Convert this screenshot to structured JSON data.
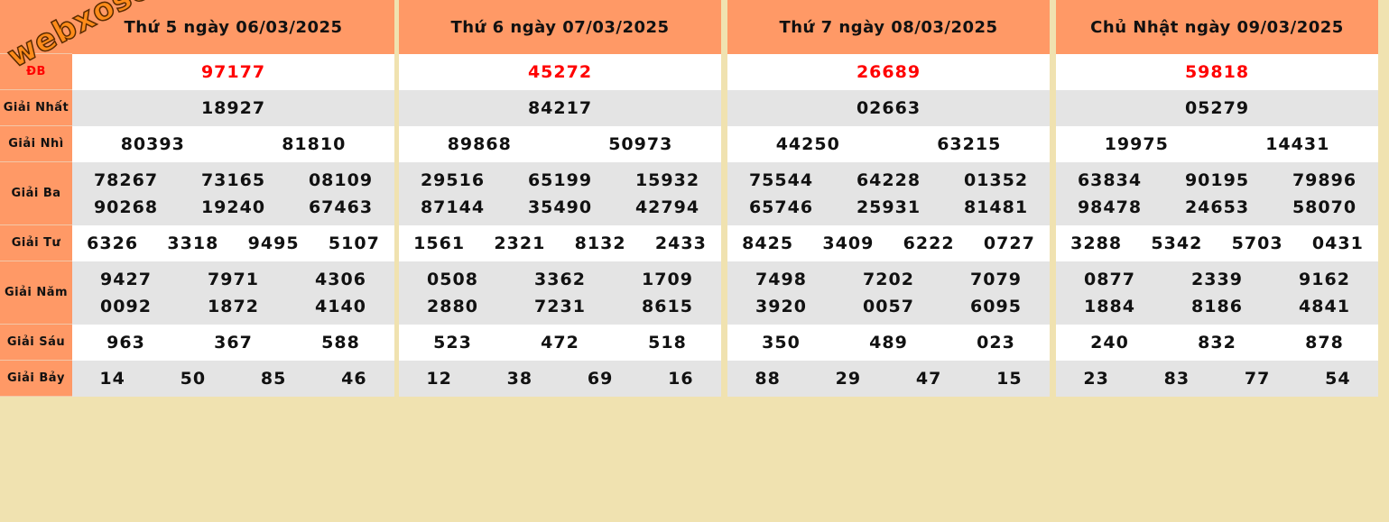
{
  "labels": [
    "",
    "ĐB",
    "Giải Nhất",
    "Giải Nhì",
    "Giải Ba",
    "Giải Tư",
    "Giải Năm",
    "Giải Sáu",
    "Giải Bảy"
  ],
  "watermark": "webxoso.net",
  "colors": {
    "header": "#ff9966",
    "special": "#ff0000",
    "background": "#f0e2b0",
    "row_alt": "#e4e4e4"
  },
  "days": [
    {
      "title": "Thứ 5 ngày 06/03/2025",
      "db": "97177",
      "nhat": "18927",
      "nhi": [
        "80393",
        "81810"
      ],
      "ba": [
        "78267",
        "73165",
        "08109",
        "90268",
        "19240",
        "67463"
      ],
      "tu": [
        "6326",
        "3318",
        "9495",
        "5107"
      ],
      "nam": [
        "9427",
        "7971",
        "4306",
        "0092",
        "1872",
        "4140"
      ],
      "sau": [
        "963",
        "367",
        "588"
      ],
      "bay": [
        "14",
        "50",
        "85",
        "46"
      ]
    },
    {
      "title": "Thứ 6 ngày 07/03/2025",
      "db": "45272",
      "nhat": "84217",
      "nhi": [
        "89868",
        "50973"
      ],
      "ba": [
        "29516",
        "65199",
        "15932",
        "87144",
        "35490",
        "42794"
      ],
      "tu": [
        "1561",
        "2321",
        "8132",
        "2433"
      ],
      "nam": [
        "0508",
        "3362",
        "1709",
        "2880",
        "7231",
        "8615"
      ],
      "sau": [
        "523",
        "472",
        "518"
      ],
      "bay": [
        "12",
        "38",
        "69",
        "16"
      ]
    },
    {
      "title": "Thứ 7 ngày 08/03/2025",
      "db": "26689",
      "nhat": "02663",
      "nhi": [
        "44250",
        "63215"
      ],
      "ba": [
        "75544",
        "64228",
        "01352",
        "65746",
        "25931",
        "81481"
      ],
      "tu": [
        "8425",
        "3409",
        "6222",
        "0727"
      ],
      "nam": [
        "7498",
        "7202",
        "7079",
        "3920",
        "0057",
        "6095"
      ],
      "sau": [
        "350",
        "489",
        "023"
      ],
      "bay": [
        "88",
        "29",
        "47",
        "15"
      ]
    },
    {
      "title": "Chủ Nhật ngày 09/03/2025",
      "db": "59818",
      "nhat": "05279",
      "nhi": [
        "19975",
        "14431"
      ],
      "ba": [
        "63834",
        "90195",
        "79896",
        "98478",
        "24653",
        "58070"
      ],
      "tu": [
        "3288",
        "5342",
        "5703",
        "0431"
      ],
      "nam": [
        "0877",
        "2339",
        "9162",
        "1884",
        "8186",
        "4841"
      ],
      "sau": [
        "240",
        "832",
        "878"
      ],
      "bay": [
        "23",
        "83",
        "77",
        "54"
      ]
    }
  ]
}
